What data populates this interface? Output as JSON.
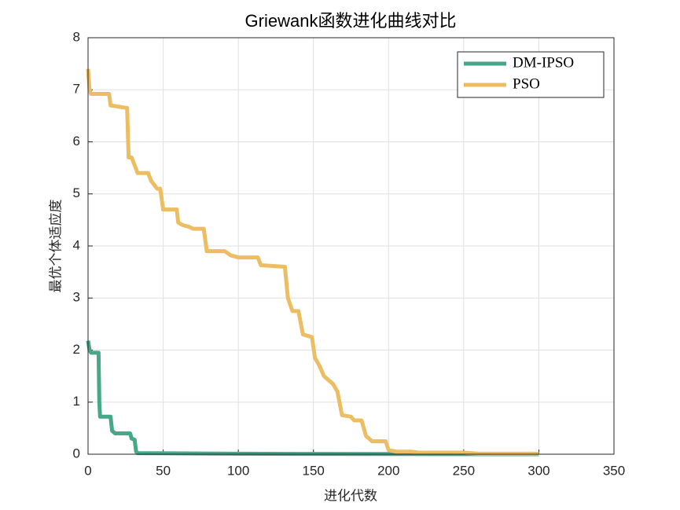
{
  "chart_data": {
    "type": "line",
    "title": "Griewank函数进化曲线对比",
    "x_label": "进化代数",
    "y_label": "最优个体适应度",
    "xlim": [
      0,
      350
    ],
    "xticks": [
      0,
      50,
      100,
      150,
      200,
      250,
      300,
      350
    ],
    "ylim": [
      0,
      8
    ],
    "yticks": [
      0,
      1,
      2,
      3,
      4,
      5,
      6,
      7,
      8
    ],
    "grid": true,
    "legend": "top-right",
    "series": [
      {
        "name": "DM-IPSO",
        "color": "#46a889",
        "x": [
          0,
          1,
          2,
          7,
          7.5,
          8,
          15,
          16,
          18,
          28,
          29,
          31,
          32,
          33,
          100,
          150,
          300
        ],
        "values": [
          2.18,
          2.0,
          1.95,
          1.95,
          1.0,
          0.72,
          0.72,
          0.45,
          0.4,
          0.4,
          0.3,
          0.28,
          0.05,
          0.02,
          0.01,
          0.005,
          0
        ]
      },
      {
        "name": "PSO",
        "color": "#ecbd62",
        "x": [
          0,
          1,
          2,
          14,
          15,
          26,
          27,
          29,
          31,
          33,
          40,
          42,
          46,
          48,
          50,
          59,
          60,
          63,
          67,
          70,
          77,
          79,
          91,
          95,
          100,
          113,
          115,
          131,
          133,
          136,
          140,
          143,
          149,
          151,
          154,
          157,
          163,
          166,
          169,
          175,
          177,
          182,
          185,
          189,
          198,
          200,
          205,
          215,
          220,
          250,
          260,
          300
        ],
        "values": [
          7.4,
          7.0,
          6.92,
          6.92,
          6.7,
          6.65,
          5.7,
          5.7,
          5.55,
          5.4,
          5.4,
          5.25,
          5.1,
          5.1,
          4.7,
          4.7,
          4.45,
          4.4,
          4.37,
          4.33,
          4.33,
          3.9,
          3.9,
          3.82,
          3.78,
          3.78,
          3.63,
          3.6,
          3.0,
          2.75,
          2.75,
          2.3,
          2.25,
          1.85,
          1.7,
          1.5,
          1.35,
          1.2,
          0.75,
          0.72,
          0.65,
          0.65,
          0.35,
          0.25,
          0.25,
          0.08,
          0.05,
          0.05,
          0.03,
          0.03,
          0.01,
          0.01
        ]
      }
    ]
  }
}
